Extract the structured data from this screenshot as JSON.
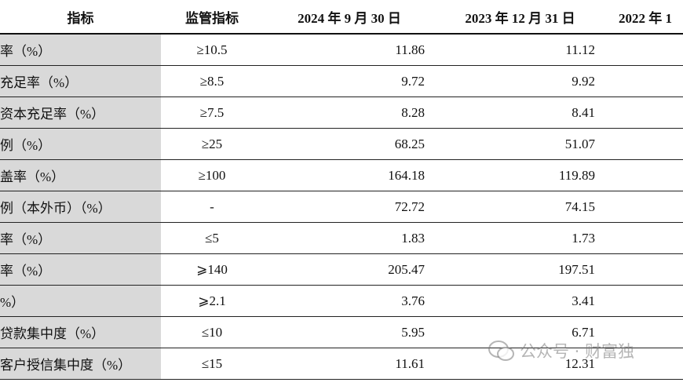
{
  "table": {
    "header": [
      "指标",
      "监管指标",
      "2024 年 9 月 30 日",
      "2023 年 12 月 31 日",
      "2022 年 1"
    ],
    "rows": [
      [
        "率（%）",
        "≥10.5",
        "11.86",
        "11.12"
      ],
      [
        "充足率（%）",
        "≥8.5",
        "9.72",
        "9.92"
      ],
      [
        "资本充足率（%）",
        "≥7.5",
        "8.28",
        "8.41"
      ],
      [
        "例（%）",
        "≥25",
        "68.25",
        "51.07"
      ],
      [
        "盖率（%）",
        "≥100",
        "164.18",
        "119.89"
      ],
      [
        "例（本外币）（%）",
        "-",
        "72.72",
        "74.15"
      ],
      [
        "率（%）",
        "≤5",
        "1.83",
        "1.73"
      ],
      [
        "率（%）",
        "⩾140",
        "205.47",
        "197.51"
      ],
      [
        "%）",
        "⩾2.1",
        "3.76",
        "3.41"
      ],
      [
        "贷款集中度（%）",
        "≤10",
        "5.95",
        "6.71"
      ],
      [
        "客户授信集中度（%）",
        "≤15",
        "11.61",
        "12.31"
      ]
    ]
  },
  "watermark": "公众号 · 财富独"
}
